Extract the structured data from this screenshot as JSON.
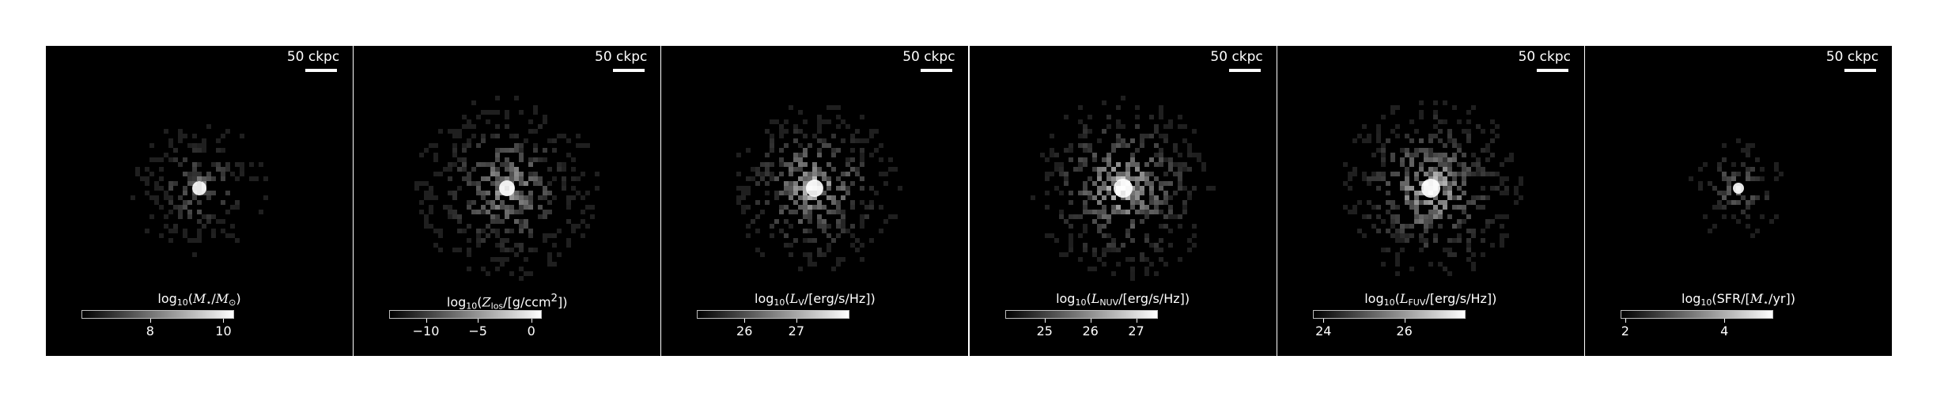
{
  "panels": [
    {
      "scale_label": "50 ckpc",
      "colorbar_title_html": "log<sub>10</sub>(<i>M</i><sub>⋆</sub>/<i>M</i><sub>⊙</sub>)",
      "ticks": [
        {
          "label": "8",
          "frac": 0.45
        },
        {
          "label": "10",
          "frac": 0.93
        }
      ],
      "blob": {
        "density": 0.55,
        "scatter": 0.22,
        "core": 0.09,
        "brightness": 0.55
      }
    },
    {
      "scale_label": "50 ckpc",
      "colorbar_title_html": "log<sub>10</sub>(<i>Z</i><sub>los</sub>/[g/ccm<sup>2</sup>])",
      "ticks": [
        {
          "label": "−10",
          "frac": 0.24
        },
        {
          "label": "−5",
          "frac": 0.58
        },
        {
          "label": "0",
          "frac": 0.93
        }
      ],
      "blob": {
        "density": 0.8,
        "scatter": 0.3,
        "core": 0.1,
        "brightness": 0.7
      }
    },
    {
      "scale_label": "50 ckpc",
      "colorbar_title_html": "log<sub>10</sub>(<i>L</i><sub>V</sub>/[erg/s/Hz])",
      "ticks": [
        {
          "label": "26",
          "frac": 0.31
        },
        {
          "label": "27",
          "frac": 0.65
        }
      ],
      "blob": {
        "density": 0.75,
        "scatter": 0.28,
        "core": 0.11,
        "brightness": 0.8
      }
    },
    {
      "scale_label": "50 ckpc",
      "colorbar_title_html": "log<sub>10</sub>(<i>L</i><sub>NUV</sub>/[erg/s/Hz])",
      "ticks": [
        {
          "label": "25",
          "frac": 0.26
        },
        {
          "label": "26",
          "frac": 0.56
        },
        {
          "label": "27",
          "frac": 0.86
        }
      ],
      "blob": {
        "density": 0.8,
        "scatter": 0.3,
        "core": 0.12,
        "brightness": 0.85
      }
    },
    {
      "scale_label": "50 ckpc",
      "colorbar_title_html": "log<sub>10</sub>(<i>L</i><sub>FUV</sub>/[erg/s/Hz])",
      "ticks": [
        {
          "label": "24",
          "frac": 0.07
        },
        {
          "label": "26",
          "frac": 0.6
        }
      ],
      "blob": {
        "density": 0.8,
        "scatter": 0.3,
        "core": 0.12,
        "brightness": 0.85
      }
    },
    {
      "scale_label": "50 ckpc",
      "colorbar_title_html": "log<sub>10</sub>(SFR/[<i>M</i><sub>⋆</sub>/yr])",
      "ticks": [
        {
          "label": "2",
          "frac": 0.03
        },
        {
          "label": "4",
          "frac": 0.68
        }
      ],
      "blob": {
        "density": 0.45,
        "scatter": 0.17,
        "core": 0.07,
        "brightness": 0.6
      }
    }
  ]
}
